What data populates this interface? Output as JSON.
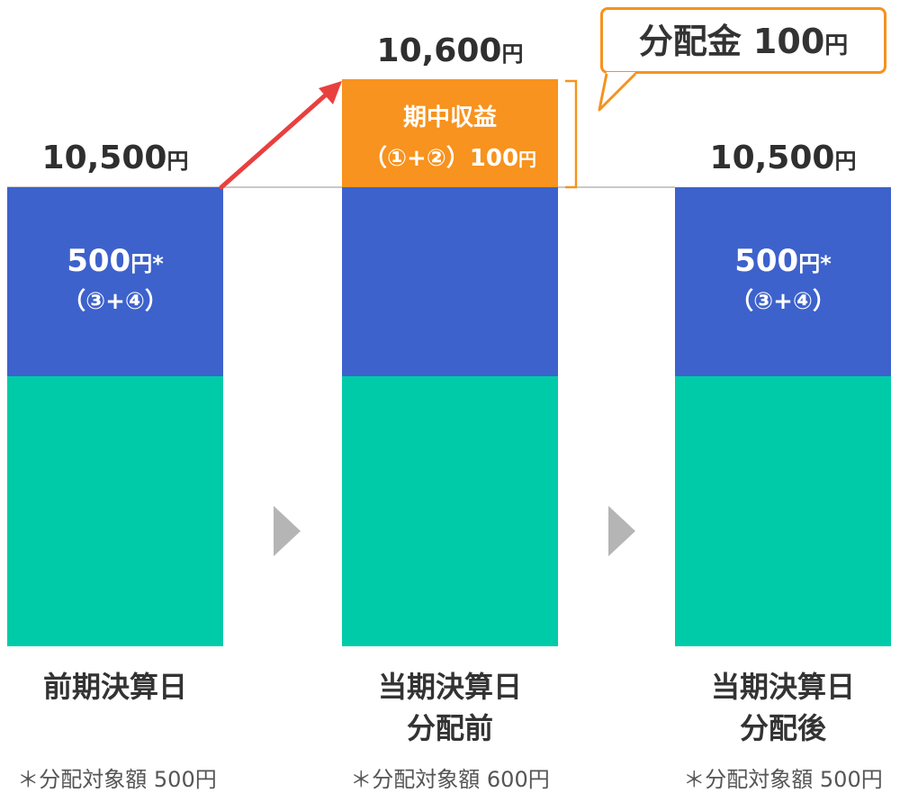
{
  "colors": {
    "blue": "#3d62cc",
    "teal": "#00cba9",
    "orange": "#f7931e",
    "arrow_red": "#e8403f",
    "chevron_gray": "#b5b5b5",
    "baseline_gray": "#c9c9c9"
  },
  "columns": [
    {
      "total_amount": "10,500",
      "total_unit": "円",
      "blue_amount": "500",
      "blue_unit": "円*",
      "blue_sub": "（③+④）",
      "date_line1": "前期決算日",
      "date_line2": "",
      "note": "＊分配対象額 500円"
    },
    {
      "total_amount": "10,600",
      "total_unit": "円",
      "orange_title": "期中収益",
      "orange_sub": "（①+②）100",
      "orange_unit": "円",
      "date_line1": "当期決算日",
      "date_line2": "分配前",
      "note": "＊分配対象額 600円"
    },
    {
      "total_amount": "10,500",
      "total_unit": "円",
      "blue_amount": "500",
      "blue_unit": "円*",
      "blue_sub": "（③+④）",
      "date_line1": "当期決算日",
      "date_line2": "分配後",
      "note": "＊分配対象額 500円"
    }
  ],
  "callout": {
    "text": "分配金 100",
    "unit": "円"
  },
  "icons": {
    "step_arrow": "chevron-right-icon",
    "increase_arrow": "arrow-up-right-icon",
    "bracket": "bracket-icon"
  }
}
